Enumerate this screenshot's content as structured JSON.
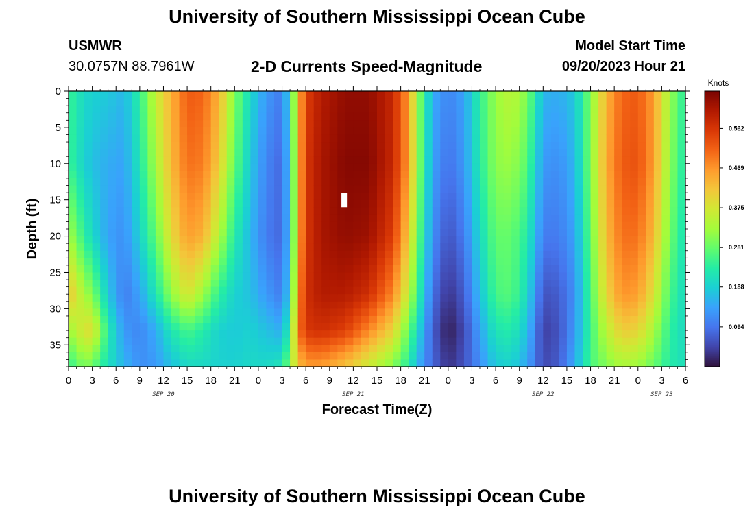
{
  "header": {
    "title": "University of Southern Mississippi Ocean Cube",
    "station": "USMWR",
    "coordinates": "30.0757N  88.7961W",
    "subtitle": "2-D Currents Speed-Magnitude",
    "model_start_label": "Model Start Time",
    "model_start_value": "09/20/2023 Hour 21"
  },
  "footer": {
    "title": "University of Southern Mississippi Ocean Cube"
  },
  "colors": {
    "colormap": [
      "#30123b",
      "#4145ab",
      "#4675ed",
      "#39a2fc",
      "#1bcfd4",
      "#24eca6",
      "#61fc6c",
      "#a4fc3b",
      "#d1e834",
      "#f3c63a",
      "#fe9b2d",
      "#f36315",
      "#d93806",
      "#b11901",
      "#7a0402"
    ],
    "axis": "#000000",
    "background": "#ffffff"
  },
  "chart_data": {
    "type": "heatmap",
    "title": "2-D Currents Speed-Magnitude",
    "xlabel": "Forecast Time(Z)",
    "ylabel": "Depth (ft)",
    "x_hours_range": [
      0,
      78
    ],
    "ylim": [
      0,
      38
    ],
    "y_inverted": true,
    "x_tick_labels": [
      "0",
      "3",
      "6",
      "9",
      "12",
      "15",
      "18",
      "21",
      "0",
      "3",
      "6",
      "9",
      "12",
      "15",
      "18",
      "21",
      "0",
      "3",
      "6",
      "9",
      "12",
      "15",
      "18",
      "21",
      "0",
      "3",
      "6"
    ],
    "y_tick_labels": [
      "0",
      "5",
      "10",
      "15",
      "20",
      "25",
      "30",
      "35"
    ],
    "y_tick_values": [
      0,
      5,
      10,
      15,
      20,
      25,
      30,
      35
    ],
    "date_labels": [
      {
        "label": "SEP 20",
        "hour": 12
      },
      {
        "label": "SEP 21",
        "hour": 36
      },
      {
        "label": "SEP 22",
        "hour": 60
      },
      {
        "label": "SEP 23",
        "hour": 75
      }
    ],
    "colorbar": {
      "units": "Knots",
      "ticks": [
        "0.562",
        "0.469",
        "0.375",
        "0.281",
        "0.188",
        "0.094"
      ],
      "tick_values": [
        0.562,
        0.469,
        0.375,
        0.281,
        0.188,
        0.094
      ],
      "range": [
        0.0,
        0.65
      ]
    },
    "profile_depths_ft": [
      0,
      10,
      20,
      28,
      33,
      38
    ],
    "speed_profiles_knots": [
      {
        "hour": 0,
        "speeds": [
          0.25,
          0.25,
          0.33,
          0.42,
          0.32,
          0.24
        ]
      },
      {
        "hour": 2,
        "speeds": [
          0.2,
          0.19,
          0.24,
          0.33,
          0.38,
          0.3
        ]
      },
      {
        "hour": 3,
        "speeds": [
          0.19,
          0.17,
          0.2,
          0.3,
          0.39,
          0.28
        ]
      },
      {
        "hour": 5,
        "speeds": [
          0.18,
          0.15,
          0.14,
          0.18,
          0.23,
          0.21
        ]
      },
      {
        "hour": 7,
        "speeds": [
          0.16,
          0.14,
          0.12,
          0.1,
          0.13,
          0.16
        ]
      },
      {
        "hour": 9,
        "speeds": [
          0.24,
          0.22,
          0.19,
          0.14,
          0.11,
          0.12
        ]
      },
      {
        "hour": 11,
        "speeds": [
          0.36,
          0.33,
          0.28,
          0.22,
          0.15,
          0.13
        ]
      },
      {
        "hour": 13,
        "speeds": [
          0.44,
          0.43,
          0.39,
          0.31,
          0.22,
          0.17
        ]
      },
      {
        "hour": 15,
        "speeds": [
          0.52,
          0.5,
          0.46,
          0.38,
          0.26,
          0.2
        ]
      },
      {
        "hour": 17,
        "speeds": [
          0.51,
          0.49,
          0.44,
          0.32,
          0.23,
          0.2
        ]
      },
      {
        "hour": 19,
        "speeds": [
          0.44,
          0.41,
          0.34,
          0.24,
          0.19,
          0.19
        ]
      },
      {
        "hour": 21,
        "speeds": [
          0.3,
          0.28,
          0.23,
          0.19,
          0.18,
          0.19
        ]
      },
      {
        "hour": 23,
        "speeds": [
          0.2,
          0.18,
          0.16,
          0.17,
          0.19,
          0.2
        ]
      },
      {
        "hour": 25,
        "speeds": [
          0.13,
          0.11,
          0.1,
          0.13,
          0.17,
          0.2
        ]
      },
      {
        "hour": 27,
        "speeds": [
          0.1,
          0.08,
          0.08,
          0.1,
          0.15,
          0.22
        ]
      },
      {
        "hour": 28,
        "speeds": [
          0.21,
          0.19,
          0.18,
          0.2,
          0.25,
          0.31
        ]
      },
      {
        "hour": 29,
        "speeds": [
          0.42,
          0.42,
          0.43,
          0.46,
          0.49,
          0.42
        ]
      },
      {
        "hour": 30,
        "speeds": [
          0.55,
          0.56,
          0.56,
          0.57,
          0.56,
          0.46
        ]
      },
      {
        "hour": 32,
        "speeds": [
          0.6,
          0.61,
          0.61,
          0.6,
          0.57,
          0.46
        ]
      },
      {
        "hour": 35,
        "speeds": [
          0.63,
          0.64,
          0.63,
          0.6,
          0.55,
          0.42
        ]
      },
      {
        "hour": 38,
        "speeds": [
          0.63,
          0.64,
          0.62,
          0.57,
          0.48,
          0.36
        ]
      },
      {
        "hour": 41,
        "speeds": [
          0.58,
          0.58,
          0.55,
          0.48,
          0.4,
          0.3
        ]
      },
      {
        "hour": 43,
        "speeds": [
          0.46,
          0.46,
          0.41,
          0.35,
          0.28,
          0.23
        ]
      },
      {
        "hour": 44,
        "speeds": [
          0.33,
          0.33,
          0.3,
          0.26,
          0.21,
          0.16
        ]
      },
      {
        "hour": 46,
        "speeds": [
          0.15,
          0.14,
          0.12,
          0.09,
          0.07,
          0.08
        ]
      },
      {
        "hour": 48,
        "speeds": [
          0.11,
          0.09,
          0.06,
          0.03,
          0.01,
          0.03
        ]
      },
      {
        "hour": 50,
        "speeds": [
          0.14,
          0.13,
          0.1,
          0.07,
          0.05,
          0.06
        ]
      },
      {
        "hour": 52,
        "speeds": [
          0.24,
          0.23,
          0.2,
          0.17,
          0.14,
          0.12
        ]
      },
      {
        "hour": 54,
        "speeds": [
          0.32,
          0.31,
          0.28,
          0.26,
          0.22,
          0.18
        ]
      },
      {
        "hour": 56,
        "speeds": [
          0.35,
          0.32,
          0.28,
          0.27,
          0.23,
          0.19
        ]
      },
      {
        "hour": 58,
        "speeds": [
          0.3,
          0.27,
          0.23,
          0.2,
          0.17,
          0.14
        ]
      },
      {
        "hour": 60,
        "speeds": [
          0.16,
          0.13,
          0.1,
          0.06,
          0.04,
          0.05
        ]
      },
      {
        "hour": 62,
        "speeds": [
          0.15,
          0.12,
          0.1,
          0.07,
          0.06,
          0.07
        ]
      },
      {
        "hour": 64,
        "speeds": [
          0.18,
          0.16,
          0.14,
          0.12,
          0.13,
          0.15
        ]
      },
      {
        "hour": 66,
        "speeds": [
          0.3,
          0.3,
          0.28,
          0.26,
          0.25,
          0.26
        ]
      },
      {
        "hour": 68,
        "speeds": [
          0.44,
          0.45,
          0.43,
          0.4,
          0.35,
          0.3
        ]
      },
      {
        "hour": 70,
        "speeds": [
          0.51,
          0.52,
          0.5,
          0.47,
          0.41,
          0.33
        ]
      },
      {
        "hour": 72,
        "speeds": [
          0.52,
          0.53,
          0.5,
          0.46,
          0.4,
          0.32
        ]
      },
      {
        "hour": 74,
        "speeds": [
          0.46,
          0.46,
          0.43,
          0.38,
          0.33,
          0.28
        ]
      },
      {
        "hour": 76,
        "speeds": [
          0.32,
          0.31,
          0.29,
          0.26,
          0.24,
          0.23
        ]
      },
      {
        "hour": 78,
        "speeds": [
          0.23,
          0.22,
          0.21,
          0.2,
          0.2,
          0.21
        ]
      }
    ],
    "missing_cells": [
      {
        "hour": 34.5,
        "depth": 14
      }
    ]
  }
}
